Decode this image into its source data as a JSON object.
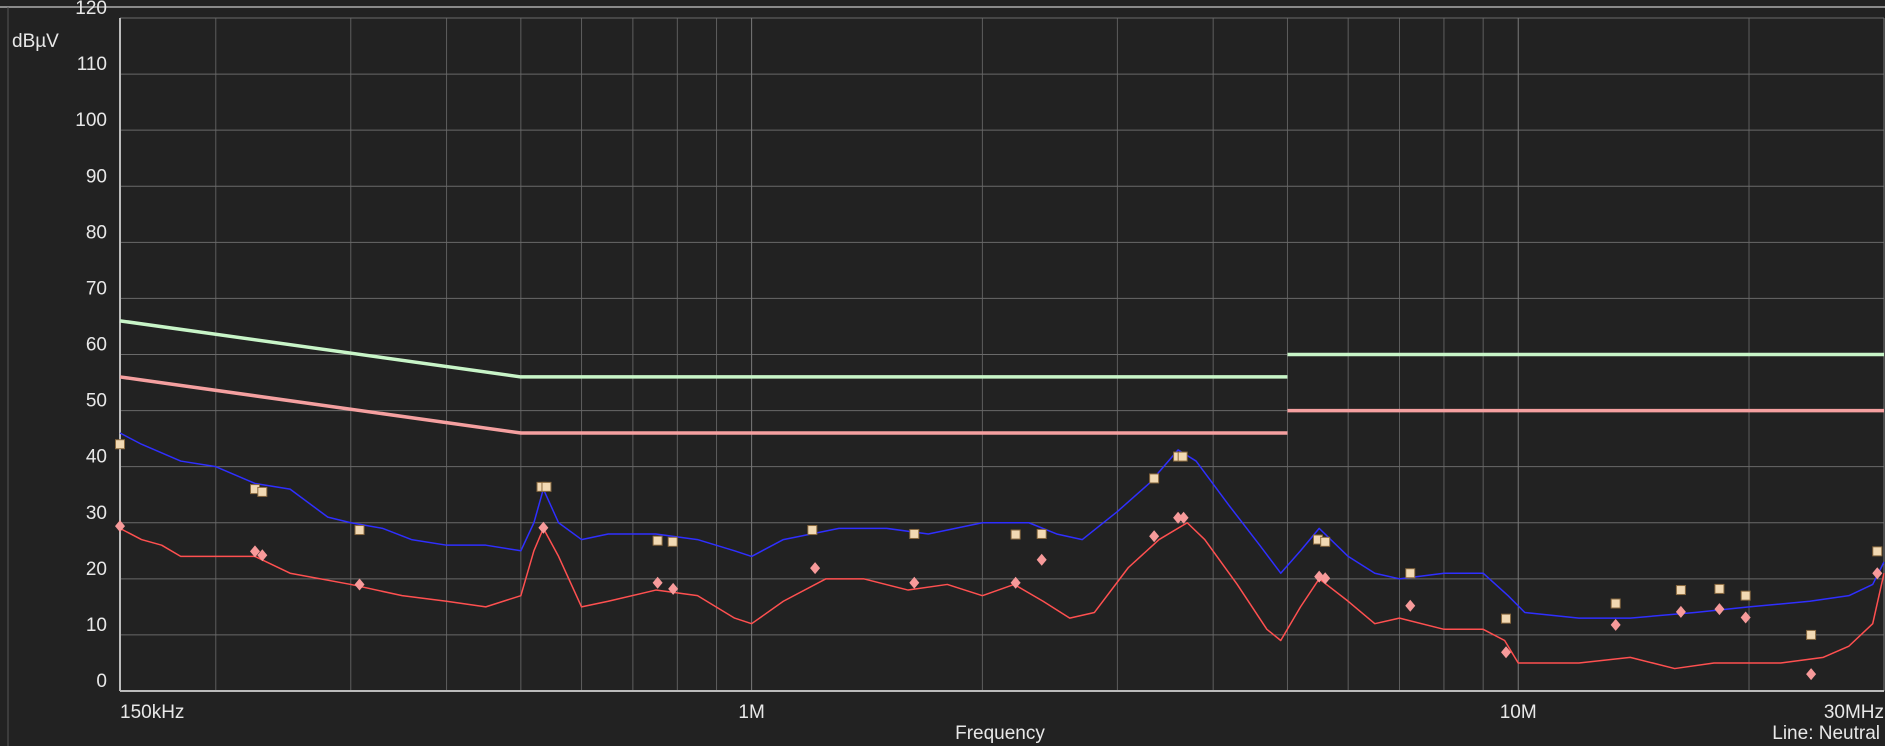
{
  "chart_data": {
    "type": "line",
    "y_label": "dBµV",
    "x_label": "Frequency",
    "annotation": "Line: Neutral",
    "x_scale": "log",
    "grid": true,
    "xlim": [
      150000,
      30000000
    ],
    "ylim": [
      0,
      120
    ],
    "yticks": [
      0,
      10,
      20,
      30,
      40,
      50,
      60,
      70,
      80,
      90,
      100,
      110,
      120
    ],
    "xticks": [
      {
        "value": 150000,
        "label": "150kHz"
      },
      {
        "value": 1000000,
        "label": "1M"
      },
      {
        "value": 10000000,
        "label": "10M"
      },
      {
        "value": 30000000,
        "label": "30MHz"
      }
    ],
    "xminor": [
      200000,
      300000,
      400000,
      500000,
      600000,
      700000,
      800000,
      900000,
      2000000,
      3000000,
      4000000,
      5000000,
      6000000,
      7000000,
      8000000,
      9000000,
      20000000
    ],
    "series": [
      {
        "style": "line",
        "color": "#c8f5c8",
        "x": [
          150000,
          500000,
          5000000,
          5000000,
          5000000,
          30000000
        ],
        "values": [
          66,
          56,
          56,
          null,
          60,
          60
        ]
      },
      {
        "style": "line",
        "color": "#f5a0a0",
        "x": [
          150000,
          500000,
          5000000,
          5000000,
          5000000,
          30000000
        ],
        "values": [
          56,
          46,
          46,
          null,
          50,
          50
        ]
      },
      {
        "style": "line",
        "color": "#2f2fff",
        "x": [
          150000,
          160000,
          180000,
          200000,
          225000,
          250000,
          280000,
          300000,
          330000,
          360000,
          400000,
          450000,
          500000,
          520000,
          535000,
          560000,
          600000,
          650000,
          750000,
          850000,
          950000,
          1000000,
          1100000,
          1300000,
          1500000,
          1700000,
          2000000,
          2300000,
          2500000,
          2700000,
          3000000,
          3300000,
          3600000,
          3800000,
          4200000,
          4600000,
          4900000,
          5200000,
          5500000,
          6000000,
          6500000,
          7000000,
          8000000,
          9000000,
          9700000,
          10200000,
          12000000,
          14000000,
          17000000,
          20000000,
          24000000,
          27000000,
          29000000,
          30000000
        ],
        "values": [
          46,
          44,
          41,
          40,
          37,
          36,
          31,
          30,
          29,
          27,
          26,
          26,
          25,
          30,
          36,
          30,
          27,
          28,
          28,
          27,
          25,
          24,
          27,
          29,
          29,
          28,
          30,
          30,
          28,
          27,
          32,
          37,
          43,
          41,
          33,
          26,
          21,
          25,
          29,
          24,
          21,
          20,
          21,
          21,
          17,
          14,
          13,
          13,
          14,
          15,
          16,
          17,
          19,
          23
        ]
      },
      {
        "style": "line",
        "color": "#ff5050",
        "x": [
          150000,
          160000,
          170000,
          180000,
          200000,
          225000,
          250000,
          300000,
          350000,
          400000,
          450000,
          500000,
          520000,
          535000,
          560000,
          600000,
          650000,
          750000,
          850000,
          950000,
          1000000,
          1100000,
          1250000,
          1400000,
          1600000,
          1800000,
          2000000,
          2200000,
          2400000,
          2600000,
          2800000,
          3100000,
          3400000,
          3700000,
          3900000,
          4300000,
          4700000,
          4900000,
          5200000,
          5500000,
          6000000,
          6500000,
          7000000,
          8000000,
          9000000,
          9600000,
          10000000,
          12000000,
          14000000,
          16000000,
          18000000,
          20000000,
          22000000,
          25000000,
          27000000,
          29000000,
          30000000
        ],
        "values": [
          29,
          27,
          26,
          24,
          24,
          24,
          21,
          19,
          17,
          16,
          15,
          17,
          25,
          29,
          24,
          15,
          16,
          18,
          17,
          13,
          12,
          16,
          20,
          20,
          18,
          19,
          17,
          19,
          16,
          13,
          14,
          22,
          27,
          30,
          27,
          19,
          11,
          9,
          15,
          20,
          16,
          12,
          13,
          11,
          11,
          9,
          5,
          5,
          6,
          4,
          5,
          5,
          5,
          6,
          8,
          12,
          21
        ]
      },
      {
        "style": "square",
        "color": "#f2d9b3",
        "x": [
          150000,
          225000,
          230000,
          308000,
          532000,
          540000,
          754000,
          789000,
          1200000,
          1630000,
          2210000,
          2390000,
          3350000,
          3600000,
          3650000,
          5480000,
          5600000,
          7230000,
          9640000,
          13400000,
          16300000,
          18300000,
          19800000,
          24100000,
          29400000
        ],
        "values": [
          44,
          36,
          35.5,
          28.7,
          36.4,
          36.4,
          26.8,
          26.6,
          28.7,
          28,
          27.9,
          28,
          37.9,
          41.8,
          41.8,
          27,
          26.6,
          21,
          12.9,
          15.6,
          18,
          18.2,
          17,
          10,
          24.9
        ]
      },
      {
        "style": "diamond",
        "color": "#f79a9a",
        "x": [
          150000,
          225000,
          230000,
          308000,
          535000,
          754000,
          790000,
          1210000,
          1630000,
          2210000,
          2390000,
          3350000,
          3600000,
          3660000,
          5500000,
          5600000,
          7230000,
          9640000,
          13400000,
          16300000,
          18300000,
          19800000,
          24100000,
          29400000
        ],
        "values": [
          29.4,
          24.9,
          24.2,
          19,
          29.1,
          19.3,
          18.2,
          21.9,
          19.3,
          19.3,
          23.4,
          27.6,
          30.9,
          30.9,
          20.4,
          20.1,
          15.2,
          6.9,
          11.8,
          14.1,
          14.6,
          13.1,
          3,
          21
        ]
      }
    ]
  }
}
